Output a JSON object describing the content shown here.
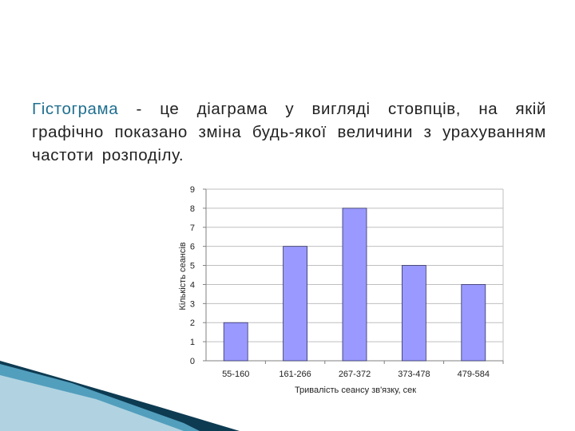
{
  "slide": {
    "definition_term": "Гістограма",
    "definition_rest": " - це діаграма у вигляді стовпців, на якій графічно показано зміна будь-якої величини з урахуванням частоти розподілу."
  },
  "colors": {
    "term": "#1f6f8f",
    "bar_fill": "#9999ff",
    "bar_stroke": "#333366",
    "grid": "#bfbfbf",
    "decor_dark": "#0d3b52",
    "decor_light": "#5fb0d0"
  },
  "chart_data": {
    "type": "bar",
    "categories": [
      "55-160",
      "161-266",
      "267-372",
      "373-478",
      "479-584"
    ],
    "values": [
      2,
      6,
      8,
      5,
      4
    ],
    "xlabel": "Тривалість сеансу зв'язку, сек",
    "ylabel": "Кількість сеансів",
    "ylim": [
      0,
      9
    ],
    "yticks": [
      0,
      1,
      2,
      3,
      4,
      5,
      6,
      7,
      8,
      9
    ],
    "grid": true,
    "legend": "none"
  }
}
